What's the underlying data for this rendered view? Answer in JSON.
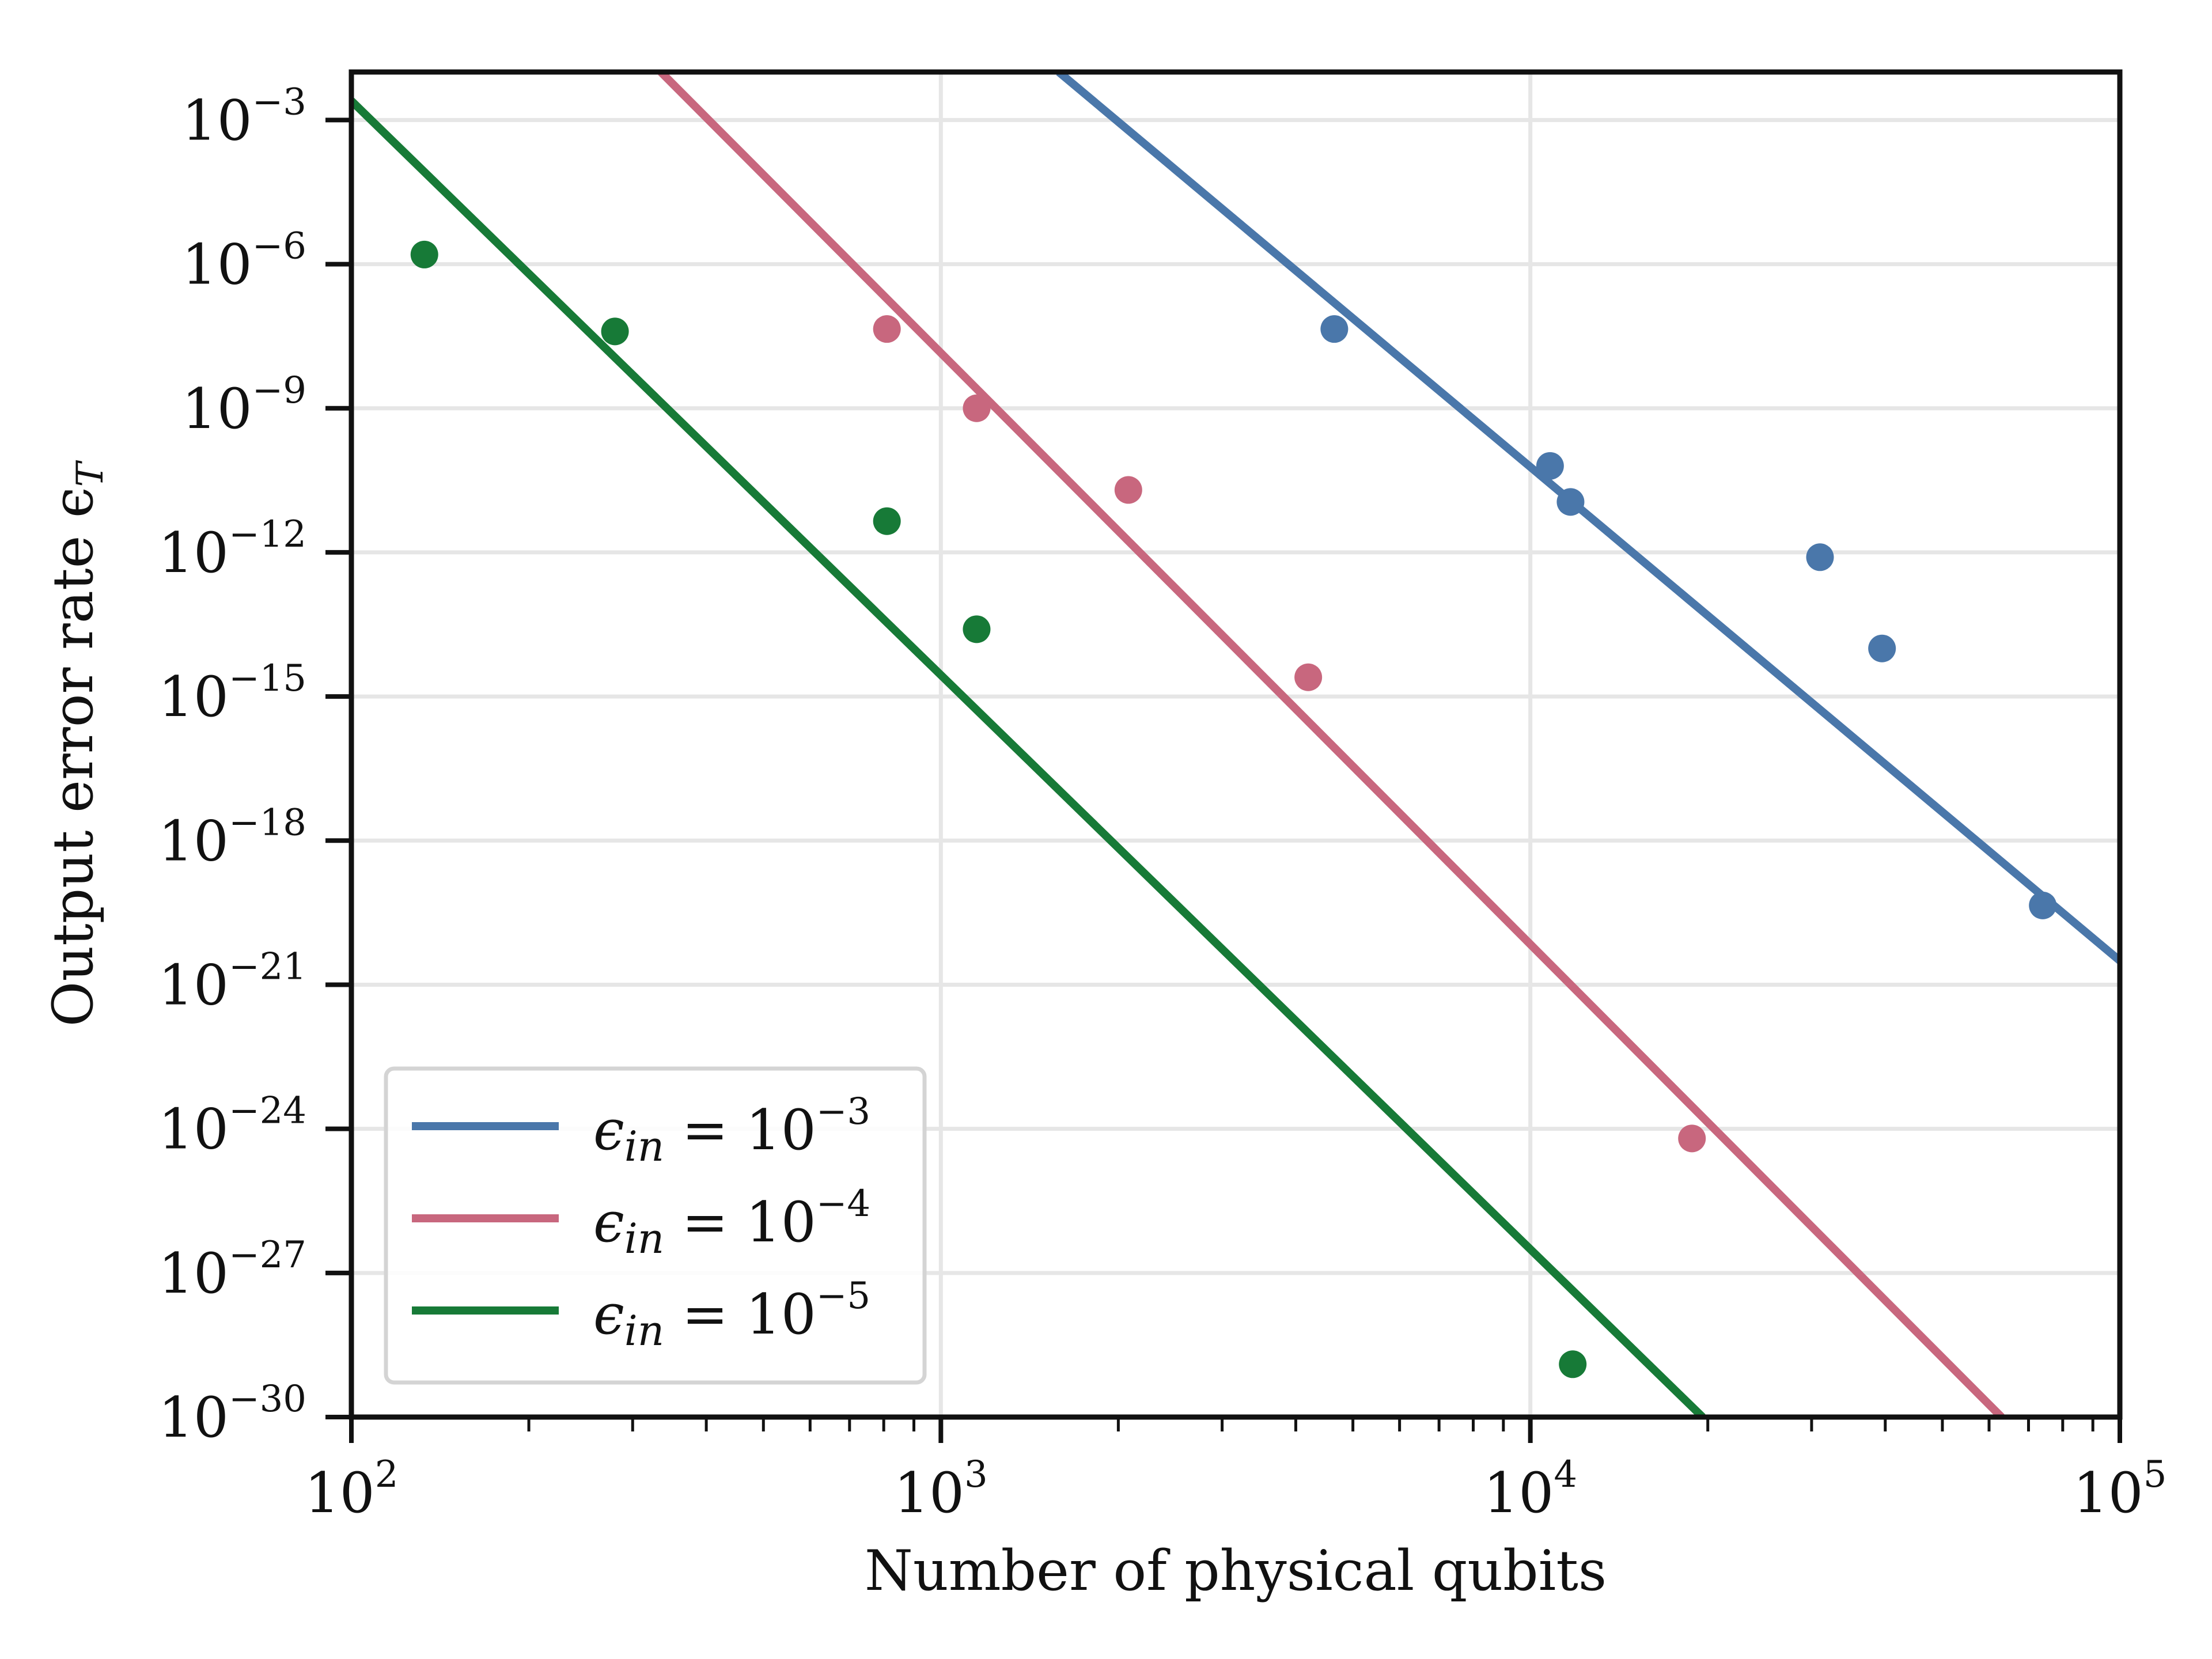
{
  "chart_data": {
    "type": "line",
    "xlabel": "Number of physical qubits",
    "ylabel": "Output error rate ϵ",
    "ylabel_subscript": "T",
    "xscale": "log",
    "yscale": "log",
    "xlim": [
      100,
      100000
    ],
    "ylim": [
      1e-30,
      0.01
    ],
    "grid": true,
    "legend_position": "lower-left",
    "x_ticks": [
      {
        "base": "10",
        "exp": "2",
        "value": 100
      },
      {
        "base": "10",
        "exp": "3",
        "value": 1000
      },
      {
        "base": "10",
        "exp": "4",
        "value": 10000
      },
      {
        "base": "10",
        "exp": "5",
        "value": 100000
      }
    ],
    "y_ticks": [
      {
        "base": "10",
        "exp": "−3",
        "value": -3
      },
      {
        "base": "10",
        "exp": "−6",
        "value": -6
      },
      {
        "base": "10",
        "exp": "−9",
        "value": -9
      },
      {
        "base": "10",
        "exp": "−12",
        "value": -12
      },
      {
        "base": "10",
        "exp": "−15",
        "value": -15
      },
      {
        "base": "10",
        "exp": "−18",
        "value": -18
      },
      {
        "base": "10",
        "exp": "−21",
        "value": -21
      },
      {
        "base": "10",
        "exp": "−24",
        "value": -24
      },
      {
        "base": "10",
        "exp": "−27",
        "value": -27
      },
      {
        "base": "10",
        "exp": "−30",
        "value": -30
      }
    ],
    "series": [
      {
        "name": "ϵin = 10−3",
        "legend_prefix": "ϵ",
        "legend_sub": "in",
        "legend_eq": " = 10",
        "legend_exp": "−3",
        "color": "#4a77aa",
        "fit_line": [
          [
            1585,
            -2.0
          ],
          [
            100000,
            -20.5
          ]
        ],
        "points": [
          [
            4650,
            -7.35
          ],
          [
            10800,
            -10.2
          ],
          [
            11700,
            -10.95
          ],
          [
            31000,
            -12.1
          ],
          [
            39500,
            -14.0
          ],
          [
            74000,
            -19.35
          ]
        ]
      },
      {
        "name": "ϵin = 10−4",
        "legend_prefix": "ϵ",
        "legend_sub": "in",
        "legend_eq": " = 10",
        "legend_exp": "−4",
        "color": "#c8677e",
        "fit_line": [
          [
            335,
            -2.0
          ],
          [
            63000,
            -30.0
          ]
        ],
        "points": [
          [
            810,
            -7.35
          ],
          [
            1150,
            -9.0
          ],
          [
            2080,
            -10.7
          ],
          [
            4200,
            -14.6
          ],
          [
            18800,
            -24.2
          ]
        ]
      },
      {
        "name": "ϵin = 10−5",
        "legend_prefix": "ϵ",
        "legend_sub": "in",
        "legend_eq": " = 10",
        "legend_exp": "−5",
        "color": "#177a37",
        "fit_line": [
          [
            100,
            -2.6
          ],
          [
            19600,
            -30.0
          ]
        ],
        "points": [
          [
            133,
            -5.8
          ],
          [
            280,
            -7.4
          ],
          [
            810,
            -11.35
          ],
          [
            1150,
            -13.6
          ],
          [
            11800,
            -28.9
          ]
        ]
      }
    ]
  }
}
